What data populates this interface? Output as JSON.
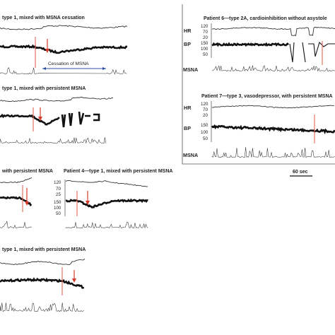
{
  "panels": {
    "p1": {
      "title": "type 1, mixed with MSNA cessation",
      "cessation_label": "Cessation of MSNA"
    },
    "p2": {
      "title": "type 1, mixed with persistent MSNA"
    },
    "p3": {
      "title": "with persistent MSNA"
    },
    "p4": {
      "title": "Patient 4—type 1, mixed with persistent MSNA",
      "ticks_hr": [
        "120",
        "70",
        "25"
      ],
      "ticks_bp": [
        "150",
        "100",
        "50"
      ]
    },
    "p5": {
      "title": "type 1, mixed with persistent MSNA"
    },
    "p6": {
      "title": "Patient 6—type 2A, cardioinhibition without asystole",
      "labels": {
        "hr": "HR",
        "bp": "BP",
        "msna": "MSNA"
      },
      "ticks_hr": [
        "120",
        "70",
        "20"
      ],
      "ticks_bp": [
        "150",
        "100",
        "50"
      ]
    },
    "p7": {
      "title": "Patient 7—type 3, vasodepressor, with persistent MSNA",
      "labels": {
        "hr": "HR",
        "bp": "BP",
        "msna": "MSNA"
      },
      "ticks_hr": [
        "120",
        "70",
        "20"
      ],
      "ticks_bp": [
        "150",
        "100",
        "50"
      ]
    }
  },
  "scale_bar": {
    "label": "60 sec"
  },
  "colors": {
    "marker": "#e06a5a",
    "arrow": "#d93a2b",
    "trace": "#111111"
  }
}
